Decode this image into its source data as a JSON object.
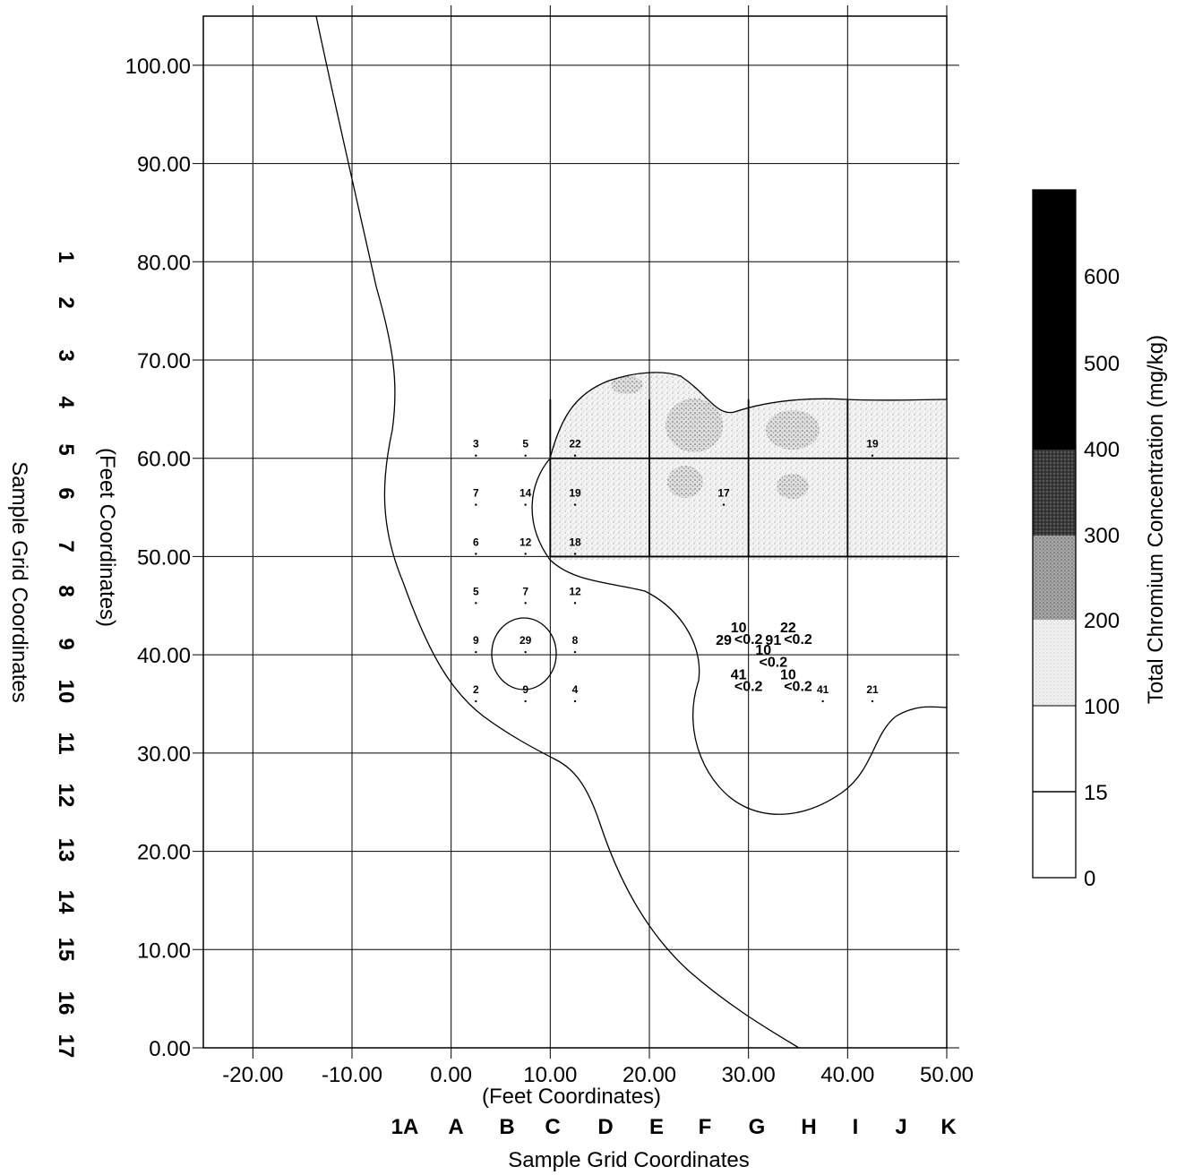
{
  "chart_data": {
    "type": "contour_map",
    "x_axis": {
      "title": "(Feet Coordinates)",
      "range": [
        -25,
        50
      ],
      "ticks": [
        -20,
        -10,
        0,
        10,
        20,
        30,
        40,
        50
      ],
      "tick_labels": [
        "-20.00",
        "-10.00",
        "0.00",
        "10.00",
        "20.00",
        "30.00",
        "40.00",
        "50.00"
      ],
      "grid": true
    },
    "y_axis": {
      "title": "(Feet Coordinates)",
      "range": [
        0,
        105
      ],
      "ticks": [
        0,
        10,
        20,
        30,
        40,
        50,
        60,
        70,
        80,
        90,
        100
      ],
      "tick_labels": [
        "0.00",
        "10.00",
        "20.00",
        "30.00",
        "40.00",
        "50.00",
        "60.00",
        "70.00",
        "80.00",
        "90.00",
        "100.00"
      ],
      "grid": true
    },
    "sample_grid_x": {
      "title": "Sample Grid Coordinates",
      "labels": [
        "1A",
        "A",
        "B",
        "C",
        "D",
        "E",
        "F",
        "G",
        "H",
        "I",
        "J",
        "K"
      ]
    },
    "sample_grid_y": {
      "title": "Sample Grid Coordinates",
      "labels": [
        "1",
        "2",
        "3",
        "4",
        "5",
        "6",
        "7",
        "8",
        "9",
        "10",
        "11",
        "12",
        "13",
        "14",
        "15",
        "16",
        "17"
      ]
    },
    "legend": {
      "title": "Total Chromium Concentration (mg/kg)",
      "placement": "right",
      "levels": [
        {
          "from": 0,
          "to": 15,
          "label": "0",
          "color": "#ffffff"
        },
        {
          "from": 15,
          "to": 100,
          "label": "15",
          "color": "#ffffff"
        },
        {
          "from": 100,
          "to": 200,
          "label": "100",
          "color": "#e6e6e6"
        },
        {
          "from": 200,
          "to": 300,
          "label": "200",
          "color": "#9a9a9a"
        },
        {
          "from": 300,
          "to": 400,
          "label": "300",
          "color": "#3c3c3c"
        },
        {
          "from": 400,
          "to": 500,
          "label": "400",
          "color": "#000000"
        },
        {
          "from": 500,
          "to": 600,
          "label": "500",
          "color": "#000000"
        },
        {
          "from": 600,
          "to": 700,
          "label": "600",
          "color": "#000000"
        }
      ],
      "tick_labels": [
        "600",
        "500",
        "400",
        "300",
        "200",
        "100",
        "15",
        "0"
      ]
    },
    "samples": [
      {
        "x": 2.5,
        "y": 61,
        "value": "3"
      },
      {
        "x": 7.5,
        "y": 61,
        "value": "5"
      },
      {
        "x": 12.5,
        "y": 61,
        "value": "22"
      },
      {
        "x": 42.5,
        "y": 61,
        "value": "19"
      },
      {
        "x": 2.5,
        "y": 56,
        "value": "7"
      },
      {
        "x": 7.5,
        "y": 56,
        "value": "14"
      },
      {
        "x": 12.5,
        "y": 56,
        "value": "19"
      },
      {
        "x": 27.5,
        "y": 56,
        "value": "17"
      },
      {
        "x": 2.5,
        "y": 51,
        "value": "6"
      },
      {
        "x": 7.5,
        "y": 51,
        "value": "12"
      },
      {
        "x": 12.5,
        "y": 51,
        "value": "18"
      },
      {
        "x": 2.5,
        "y": 46,
        "value": "5"
      },
      {
        "x": 7.5,
        "y": 46,
        "value": "7"
      },
      {
        "x": 12.5,
        "y": 46,
        "value": "12"
      },
      {
        "x": 2.5,
        "y": 41,
        "value": "9"
      },
      {
        "x": 7.5,
        "y": 41,
        "value": "29"
      },
      {
        "x": 12.5,
        "y": 41,
        "value": "8"
      },
      {
        "x": 2.5,
        "y": 36,
        "value": "2"
      },
      {
        "x": 7.5,
        "y": 36,
        "value": "9"
      },
      {
        "x": 12.5,
        "y": 36,
        "value": "4"
      },
      {
        "x": 42.5,
        "y": 36,
        "value": "21"
      },
      {
        "x": 37.5,
        "y": 36,
        "value": "41"
      }
    ],
    "cluster_labels": [
      {
        "x": 29.0,
        "y": 42.3,
        "value": "10"
      },
      {
        "x": 30.0,
        "y": 41.1,
        "value": "<0.2"
      },
      {
        "x": 27.5,
        "y": 41.0,
        "value": "29"
      },
      {
        "x": 34.0,
        "y": 42.3,
        "value": "22"
      },
      {
        "x": 35.0,
        "y": 41.1,
        "value": "<0.2"
      },
      {
        "x": 32.5,
        "y": 41.0,
        "value": "91"
      },
      {
        "x": 31.5,
        "y": 40.0,
        "value": "10"
      },
      {
        "x": 32.5,
        "y": 38.8,
        "value": "<0.2"
      },
      {
        "x": 29.0,
        "y": 37.5,
        "value": "41"
      },
      {
        "x": 30.0,
        "y": 36.3,
        "value": "<0.2"
      },
      {
        "x": 34.0,
        "y": 37.5,
        "value": "10"
      },
      {
        "x": 35.0,
        "y": 36.3,
        "value": "<0.2"
      }
    ]
  }
}
